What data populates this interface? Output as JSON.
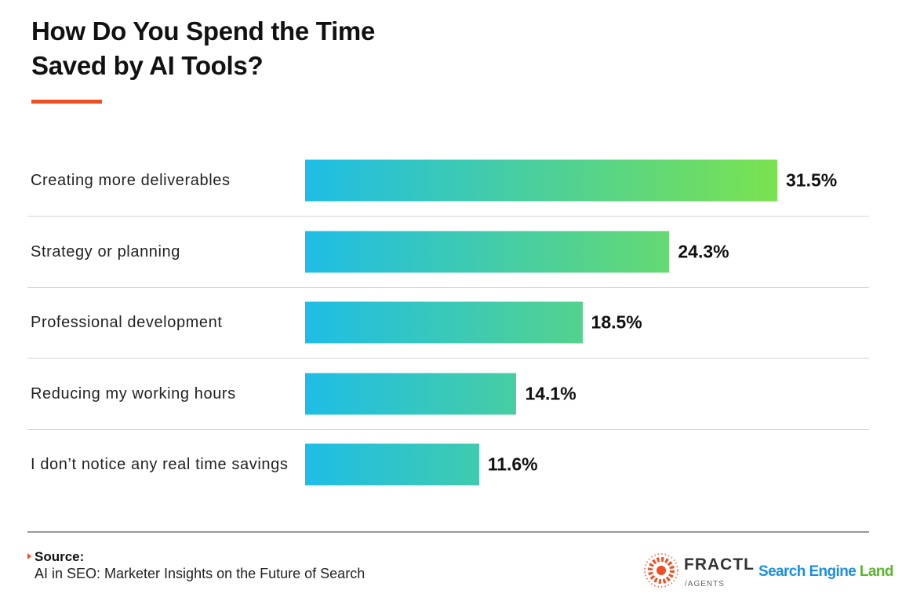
{
  "chart_data": {
    "type": "bar",
    "orientation": "horizontal",
    "title": "How Do You Spend the Time Saved by AI Tools?",
    "categories": [
      "Creating more deliverables",
      "Strategy or planning",
      "Professional development",
      "Reducing my working hours",
      "I don’t notice any real time savings"
    ],
    "values": [
      31.5,
      24.3,
      18.5,
      14.1,
      11.6
    ],
    "value_labels": [
      "31.5%",
      "24.3%",
      "18.5%",
      "14.1%",
      "11.6%"
    ],
    "gradient": [
      "#1ebde6",
      "#7ae24f"
    ],
    "source_label": "Source:",
    "source": "AI in SEO: Marketer Insights on the Future of Search",
    "logo_fractl": "FRACTL",
    "logo_fractl_sub": "/AGENTS",
    "logo_sel": [
      "Search Engine",
      "Land"
    ]
  }
}
